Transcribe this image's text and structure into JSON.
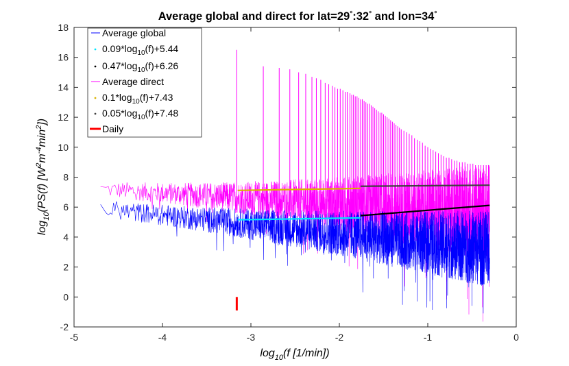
{
  "chart_data": {
    "type": "line",
    "title": "Average global and direct for lat=29°:32° and lon=34°",
    "xlabel": "log10(f [1/min])",
    "ylabel": "log10(PS(f) [W^2 m^-4 min^2])",
    "xlim": [
      -5,
      0
    ],
    "ylim": [
      -2,
      18
    ],
    "xticks": [
      -5,
      -4,
      -3,
      -2,
      -1,
      0
    ],
    "yticks": [
      -2,
      0,
      2,
      4,
      6,
      8,
      10,
      12,
      14,
      16,
      18
    ],
    "x_range": [
      -4.7,
      -0.3
    ],
    "series": [
      {
        "name": "Average global",
        "color": "#0000ff",
        "kind": "noisy-spectrum",
        "x_range": [
          -4.7,
          -0.3
        ],
        "level_start": 5.9,
        "level_end": 3.2,
        "noise_start": 0.6,
        "noise_end": 2.6
      },
      {
        "name": "0.09*log10(f)+5.44",
        "color": "#00e5ff",
        "kind": "fit",
        "slope": 0.09,
        "intercept": 5.44,
        "x_range": [
          -3.15,
          -1.76
        ]
      },
      {
        "name": "0.47*log10(f)+6.26",
        "color": "#000000",
        "kind": "fit",
        "slope": 0.47,
        "intercept": 6.26,
        "x_range": [
          -1.76,
          -0.3
        ]
      },
      {
        "name": "Average direct",
        "color": "#ff00ff",
        "kind": "noisy-spectrum",
        "x_range": [
          -4.7,
          -0.3
        ],
        "level_start": 7.2,
        "level_end": 5.6,
        "noise_start": 0.55,
        "noise_end": 3.3,
        "harmonics": [
          [
            -3.16,
            16.5
          ],
          [
            -2.86,
            15.4
          ],
          [
            -2.68,
            15.3
          ],
          [
            -2.56,
            15.2
          ],
          [
            -2.46,
            15.0
          ],
          [
            -2.38,
            14.9
          ],
          [
            -2.31,
            14.7
          ],
          [
            -2.26,
            14.6
          ],
          [
            -2.21,
            14.5
          ],
          [
            -2.16,
            14.3
          ],
          [
            -2.12,
            14.2
          ],
          [
            -2.08,
            14.1
          ],
          [
            -2.05,
            14.0
          ],
          [
            -2.02,
            13.9
          ],
          [
            -1.99,
            13.9
          ],
          [
            -1.96,
            13.8
          ],
          [
            -1.93,
            13.7
          ],
          [
            -1.91,
            13.7
          ],
          [
            -1.88,
            13.6
          ],
          [
            -1.86,
            13.5
          ],
          [
            -1.84,
            13.5
          ],
          [
            -1.82,
            13.4
          ],
          [
            -1.8,
            13.4
          ],
          [
            -1.78,
            13.3
          ],
          [
            -1.76,
            13.2
          ],
          [
            -1.74,
            13.2
          ],
          [
            -1.72,
            13.1
          ],
          [
            -1.7,
            13.0
          ],
          [
            -1.68,
            12.9
          ],
          [
            -1.66,
            12.9
          ],
          [
            -1.64,
            12.8
          ],
          [
            -1.62,
            12.7
          ],
          [
            -1.6,
            12.6
          ],
          [
            -1.58,
            12.5
          ],
          [
            -1.56,
            12.4
          ],
          [
            -1.54,
            12.3
          ],
          [
            -1.52,
            12.3
          ],
          [
            -1.5,
            12.2
          ],
          [
            -1.48,
            12.1
          ],
          [
            -1.46,
            12.0
          ],
          [
            -1.44,
            11.9
          ],
          [
            -1.42,
            11.8
          ],
          [
            -1.4,
            11.7
          ],
          [
            -1.38,
            11.6
          ],
          [
            -1.36,
            11.5
          ],
          [
            -1.34,
            11.4
          ],
          [
            -1.32,
            11.3
          ],
          [
            -1.3,
            11.2
          ],
          [
            -1.27,
            11.1
          ],
          [
            -1.24,
            11.0
          ],
          [
            -1.21,
            10.9
          ],
          [
            -1.18,
            10.8
          ],
          [
            -1.15,
            10.6
          ],
          [
            -1.12,
            10.5
          ],
          [
            -1.09,
            10.4
          ],
          [
            -1.06,
            10.3
          ],
          [
            -1.03,
            10.1
          ],
          [
            -1.0,
            10.0
          ],
          [
            -0.97,
            9.9
          ],
          [
            -0.94,
            9.8
          ],
          [
            -0.91,
            9.7
          ],
          [
            -0.88,
            9.6
          ],
          [
            -0.85,
            9.5
          ],
          [
            -0.82,
            9.4
          ],
          [
            -0.79,
            9.3
          ],
          [
            -0.76,
            9.3
          ],
          [
            -0.73,
            9.2
          ],
          [
            -0.7,
            9.1
          ],
          [
            -0.67,
            9.1
          ],
          [
            -0.64,
            9.0
          ],
          [
            -0.61,
            9.0
          ],
          [
            -0.58,
            9.0
          ],
          [
            -0.55,
            8.9
          ],
          [
            -0.52,
            8.9
          ],
          [
            -0.49,
            8.9
          ],
          [
            -0.46,
            8.8
          ],
          [
            -0.43,
            8.8
          ],
          [
            -0.4,
            8.8
          ],
          [
            -0.37,
            8.8
          ],
          [
            -0.34,
            8.8
          ],
          [
            -0.31,
            8.8
          ]
        ]
      },
      {
        "name": "0.1*log10(f)+7.43",
        "color": "#d9b300",
        "kind": "fit",
        "slope": 0.1,
        "intercept": 7.43,
        "x_range": [
          -3.15,
          -1.76
        ]
      },
      {
        "name": "0.05*log10(f)+7.48",
        "color": "#404040",
        "kind": "fit",
        "slope": 0.05,
        "intercept": 7.48,
        "x_range": [
          -1.76,
          -0.3
        ]
      },
      {
        "name": "Daily",
        "color": "#ff0000",
        "kind": "marker",
        "x": -3.16,
        "y_range": [
          -0.9,
          0
        ]
      }
    ],
    "legend": {
      "position": "top-left",
      "entries": [
        {
          "label": "Average global",
          "marker": "line",
          "color": "#0000ff"
        },
        {
          "label": "0.09*log10(f)+5.44",
          "marker": "dot",
          "color": "#00e5ff",
          "base": "0.09*log",
          "sub": "10",
          "tail": "(f)+5.44"
        },
        {
          "label": "0.47*log10(f)+6.26",
          "marker": "dot",
          "color": "#000000",
          "base": "0.47*log",
          "sub": "10",
          "tail": "(f)+6.26"
        },
        {
          "label": "Average direct",
          "marker": "line",
          "color": "#ff00ff"
        },
        {
          "label": "0.1*log10(f)+7.43",
          "marker": "dot",
          "color": "#d9b300",
          "base": "0.1*log",
          "sub": "10",
          "tail": "(f)+7.43"
        },
        {
          "label": "0.05*log10(f)+7.48",
          "marker": "dot",
          "color": "#404040",
          "base": "0.05*log",
          "sub": "10",
          "tail": "(f)+7.48"
        },
        {
          "label": "Daily",
          "marker": "thick-line",
          "color": "#ff0000"
        }
      ]
    }
  }
}
